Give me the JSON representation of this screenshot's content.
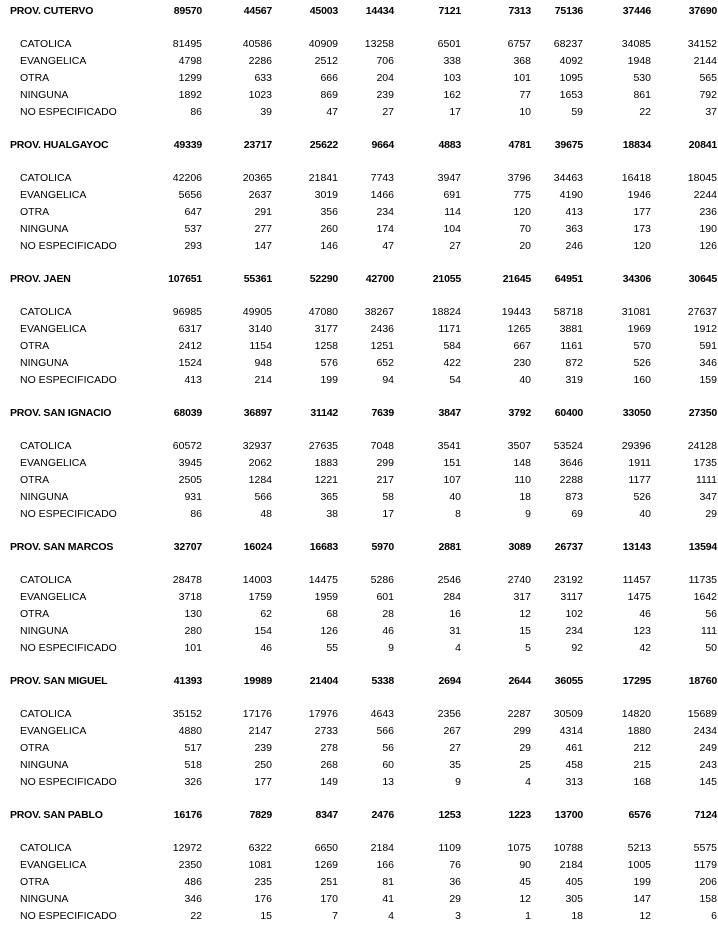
{
  "sub_labels": [
    "CATOLICA",
    "EVANGELICA",
    "OTRA",
    "NINGUNA",
    "NO ESPECIFICADO"
  ],
  "provinces": [
    {
      "name": "PROV. CUTERVO",
      "total": [
        "89570",
        "44567",
        "45003",
        "14434",
        "7121",
        "7313",
        "75136",
        "37446",
        "37690"
      ],
      "rows": [
        {
          "label": "CATOLICA",
          "values": [
            "81495",
            "40586",
            "40909",
            "13258",
            "6501",
            "6757",
            "68237",
            "34085",
            "34152"
          ]
        },
        {
          "label": "EVANGELICA",
          "values": [
            "4798",
            "2286",
            "2512",
            "706",
            "338",
            "368",
            "4092",
            "1948",
            "2144"
          ]
        },
        {
          "label": "OTRA",
          "values": [
            "1299",
            "633",
            "666",
            "204",
            "103",
            "101",
            "1095",
            "530",
            "565"
          ]
        },
        {
          "label": "NINGUNA",
          "values": [
            "1892",
            "1023",
            "869",
            "239",
            "162",
            "77",
            "1653",
            "861",
            "792"
          ]
        },
        {
          "label": "NO ESPECIFICADO",
          "values": [
            "86",
            "39",
            "47",
            "27",
            "17",
            "10",
            "59",
            "22",
            "37"
          ]
        }
      ]
    },
    {
      "name": "PROV. HUALGAYOC",
      "total": [
        "49339",
        "23717",
        "25622",
        "9664",
        "4883",
        "4781",
        "39675",
        "18834",
        "20841"
      ],
      "rows": [
        {
          "label": "CATOLICA",
          "values": [
            "42206",
            "20365",
            "21841",
            "7743",
            "3947",
            "3796",
            "34463",
            "16418",
            "18045"
          ]
        },
        {
          "label": "EVANGELICA",
          "values": [
            "5656",
            "2637",
            "3019",
            "1466",
            "691",
            "775",
            "4190",
            "1946",
            "2244"
          ]
        },
        {
          "label": "OTRA",
          "values": [
            "647",
            "291",
            "356",
            "234",
            "114",
            "120",
            "413",
            "177",
            "236"
          ]
        },
        {
          "label": "NINGUNA",
          "values": [
            "537",
            "277",
            "260",
            "174",
            "104",
            "70",
            "363",
            "173",
            "190"
          ]
        },
        {
          "label": "NO ESPECIFICADO",
          "values": [
            "293",
            "147",
            "146",
            "47",
            "27",
            "20",
            "246",
            "120",
            "126"
          ]
        }
      ]
    },
    {
      "name": "PROV. JAEN",
      "total": [
        "107651",
        "55361",
        "52290",
        "42700",
        "21055",
        "21645",
        "64951",
        "34306",
        "30645"
      ],
      "rows": [
        {
          "label": "CATOLICA",
          "values": [
            "96985",
            "49905",
            "47080",
            "38267",
            "18824",
            "19443",
            "58718",
            "31081",
            "27637"
          ]
        },
        {
          "label": "EVANGELICA",
          "values": [
            "6317",
            "3140",
            "3177",
            "2436",
            "1171",
            "1265",
            "3881",
            "1969",
            "1912"
          ]
        },
        {
          "label": "OTRA",
          "values": [
            "2412",
            "1154",
            "1258",
            "1251",
            "584",
            "667",
            "1161",
            "570",
            "591"
          ]
        },
        {
          "label": "NINGUNA",
          "values": [
            "1524",
            "948",
            "576",
            "652",
            "422",
            "230",
            "872",
            "526",
            "346"
          ]
        },
        {
          "label": "NO ESPECIFICADO",
          "values": [
            "413",
            "214",
            "199",
            "94",
            "54",
            "40",
            "319",
            "160",
            "159"
          ]
        }
      ]
    },
    {
      "name": "PROV. SAN IGNACIO",
      "total": [
        "68039",
        "36897",
        "31142",
        "7639",
        "3847",
        "3792",
        "60400",
        "33050",
        "27350"
      ],
      "rows": [
        {
          "label": "CATOLICA",
          "values": [
            "60572",
            "32937",
            "27635",
            "7048",
            "3541",
            "3507",
            "53524",
            "29396",
            "24128"
          ]
        },
        {
          "label": "EVANGELICA",
          "values": [
            "3945",
            "2062",
            "1883",
            "299",
            "151",
            "148",
            "3646",
            "1911",
            "1735"
          ]
        },
        {
          "label": "OTRA",
          "values": [
            "2505",
            "1284",
            "1221",
            "217",
            "107",
            "110",
            "2288",
            "1177",
            "1111"
          ]
        },
        {
          "label": "NINGUNA",
          "values": [
            "931",
            "566",
            "365",
            "58",
            "40",
            "18",
            "873",
            "526",
            "347"
          ]
        },
        {
          "label": "NO ESPECIFICADO",
          "values": [
            "86",
            "48",
            "38",
            "17",
            "8",
            "9",
            "69",
            "40",
            "29"
          ]
        }
      ]
    },
    {
      "name": "PROV. SAN MARCOS",
      "total": [
        "32707",
        "16024",
        "16683",
        "5970",
        "2881",
        "3089",
        "26737",
        "13143",
        "13594"
      ],
      "rows": [
        {
          "label": "CATOLICA",
          "values": [
            "28478",
            "14003",
            "14475",
            "5286",
            "2546",
            "2740",
            "23192",
            "11457",
            "11735"
          ]
        },
        {
          "label": "EVANGELICA",
          "values": [
            "3718",
            "1759",
            "1959",
            "601",
            "284",
            "317",
            "3117",
            "1475",
            "1642"
          ]
        },
        {
          "label": "OTRA",
          "values": [
            "130",
            "62",
            "68",
            "28",
            "16",
            "12",
            "102",
            "46",
            "56"
          ]
        },
        {
          "label": "NINGUNA",
          "values": [
            "280",
            "154",
            "126",
            "46",
            "31",
            "15",
            "234",
            "123",
            "111"
          ]
        },
        {
          "label": "NO ESPECIFICADO",
          "values": [
            "101",
            "46",
            "55",
            "9",
            "4",
            "5",
            "92",
            "42",
            "50"
          ]
        }
      ]
    },
    {
      "name": "PROV. SAN MIGUEL",
      "total": [
        "41393",
        "19989",
        "21404",
        "5338",
        "2694",
        "2644",
        "36055",
        "17295",
        "18760"
      ],
      "rows": [
        {
          "label": "CATOLICA",
          "values": [
            "35152",
            "17176",
            "17976",
            "4643",
            "2356",
            "2287",
            "30509",
            "14820",
            "15689"
          ]
        },
        {
          "label": "EVANGELICA",
          "values": [
            "4880",
            "2147",
            "2733",
            "566",
            "267",
            "299",
            "4314",
            "1880",
            "2434"
          ]
        },
        {
          "label": "OTRA",
          "values": [
            "517",
            "239",
            "278",
            "56",
            "27",
            "29",
            "461",
            "212",
            "249"
          ]
        },
        {
          "label": "NINGUNA",
          "values": [
            "518",
            "250",
            "268",
            "60",
            "35",
            "25",
            "458",
            "215",
            "243"
          ]
        },
        {
          "label": "NO ESPECIFICADO",
          "values": [
            "326",
            "177",
            "149",
            "13",
            "9",
            "4",
            "313",
            "168",
            "145"
          ]
        }
      ]
    },
    {
      "name": "PROV. SAN PABLO",
      "total": [
        "16176",
        "7829",
        "8347",
        "2476",
        "1253",
        "1223",
        "13700",
        "6576",
        "7124"
      ],
      "rows": [
        {
          "label": "CATOLICA",
          "values": [
            "12972",
            "6322",
            "6650",
            "2184",
            "1109",
            "1075",
            "10788",
            "5213",
            "5575"
          ]
        },
        {
          "label": "EVANGELICA",
          "values": [
            "2350",
            "1081",
            "1269",
            "166",
            "76",
            "90",
            "2184",
            "1005",
            "1179"
          ]
        },
        {
          "label": "OTRA",
          "values": [
            "486",
            "235",
            "251",
            "81",
            "36",
            "45",
            "405",
            "199",
            "206"
          ]
        },
        {
          "label": "NINGUNA",
          "values": [
            "346",
            "176",
            "170",
            "41",
            "29",
            "12",
            "305",
            "147",
            "158"
          ]
        },
        {
          "label": "NO ESPECIFICADO",
          "values": [
            "22",
            "15",
            "7",
            "4",
            "3",
            "1",
            "18",
            "12",
            "6"
          ]
        }
      ]
    }
  ]
}
